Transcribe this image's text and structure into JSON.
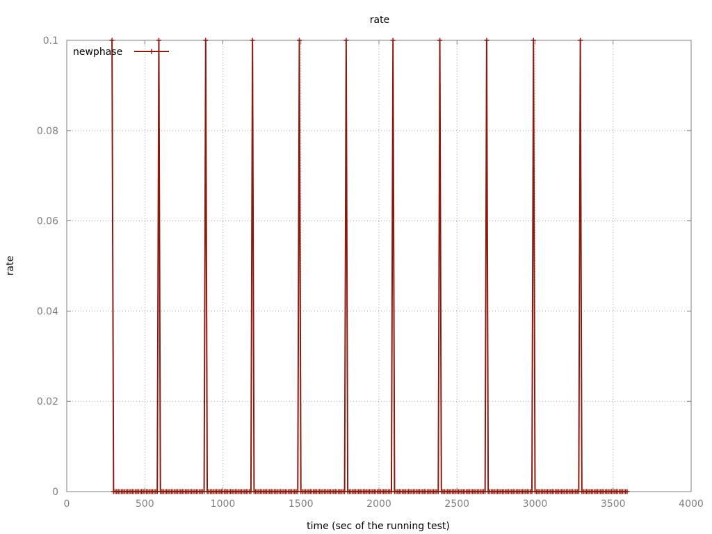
{
  "chart_data": {
    "type": "line",
    "title": "rate",
    "xlabel": "time (sec of the running test)",
    "ylabel": "rate",
    "xlim": [
      0,
      4000
    ],
    "ylim": [
      0,
      0.1
    ],
    "x_ticks": [
      0,
      500,
      1000,
      1500,
      2000,
      2500,
      3000,
      3500,
      4000
    ],
    "x_tick_labels": [
      "0",
      "500",
      "1000",
      "1500",
      "2000",
      "2500",
      "3000",
      "3500",
      "4000"
    ],
    "y_ticks": [
      0,
      0.02,
      0.04,
      0.06,
      0.08,
      0.1
    ],
    "y_tick_labels": [
      "0",
      "0.02",
      "0.04",
      "0.06",
      "0.08",
      "0.1"
    ],
    "grid": true,
    "legend_position": "top-left",
    "marker": "plus",
    "series": [
      {
        "name": "newphase",
        "color": "#8b1a0e",
        "x_start": 290,
        "x_end": 3590,
        "x_step": 10,
        "peaks_x": [
          290,
          590,
          890,
          1190,
          1490,
          1790,
          2090,
          2390,
          2690,
          2990,
          3290
        ],
        "peak_value": 0.1,
        "base_value": 0
      }
    ]
  }
}
